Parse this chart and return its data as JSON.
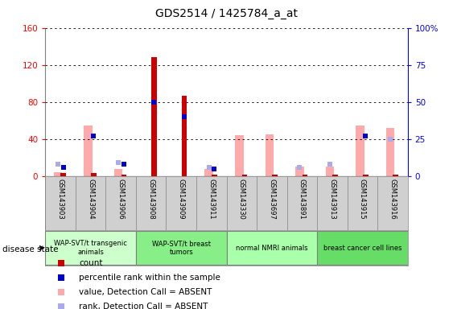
{
  "title": "GDS2514 / 1425784_a_at",
  "samples": [
    "GSM143903",
    "GSM143904",
    "GSM143906",
    "GSM143908",
    "GSM143909",
    "GSM143911",
    "GSM143330",
    "GSM143697",
    "GSM143891",
    "GSM143913",
    "GSM143915",
    "GSM143916"
  ],
  "red_bars": [
    3,
    3,
    2,
    128,
    87,
    2,
    2,
    2,
    2,
    2,
    2,
    2
  ],
  "blue_squares_pct": [
    6,
    27,
    8,
    50,
    40,
    5,
    null,
    null,
    null,
    null,
    27,
    null
  ],
  "pink_bars": [
    4,
    55,
    8,
    null,
    null,
    8,
    44,
    45,
    10,
    10,
    55,
    52
  ],
  "lavender_squares_pct": [
    8,
    null,
    9,
    null,
    null,
    6,
    null,
    null,
    6,
    8,
    null,
    25
  ],
  "groups": [
    {
      "label": "WAP-SVT/t transgenic\nanimals",
      "start": 0,
      "end": 3,
      "color": "#ccffcc"
    },
    {
      "label": "WAP-SVT/t breast\ntumors",
      "start": 3,
      "end": 6,
      "color": "#88ee88"
    },
    {
      "label": "normal NMRI animals",
      "start": 6,
      "end": 9,
      "color": "#aaffaa"
    },
    {
      "label": "breast cancer cell lines",
      "start": 9,
      "end": 12,
      "color": "#66dd66"
    }
  ],
  "ylim_left": [
    0,
    160
  ],
  "ylim_right": [
    0,
    100
  ],
  "yticks_left": [
    0,
    40,
    80,
    120,
    160
  ],
  "ytick_labels_left": [
    "0",
    "40",
    "80",
    "120",
    "160"
  ],
  "yticks_right_pct": [
    0,
    25,
    50,
    75,
    100
  ],
  "ytick_labels_right": [
    "0",
    "25",
    "50",
    "75",
    "100%"
  ],
  "legend_items": [
    {
      "color": "#cc0000",
      "shape": "s",
      "label": "count"
    },
    {
      "color": "#0000cc",
      "shape": "s",
      "label": "percentile rank within the sample"
    },
    {
      "color": "#ffaaaa",
      "shape": "s",
      "label": "value, Detection Call = ABSENT"
    },
    {
      "color": "#aaaaee",
      "shape": "s",
      "label": "rank, Detection Call = ABSENT"
    }
  ],
  "fig_width": 5.63,
  "fig_height": 3.84,
  "dpi": 100
}
